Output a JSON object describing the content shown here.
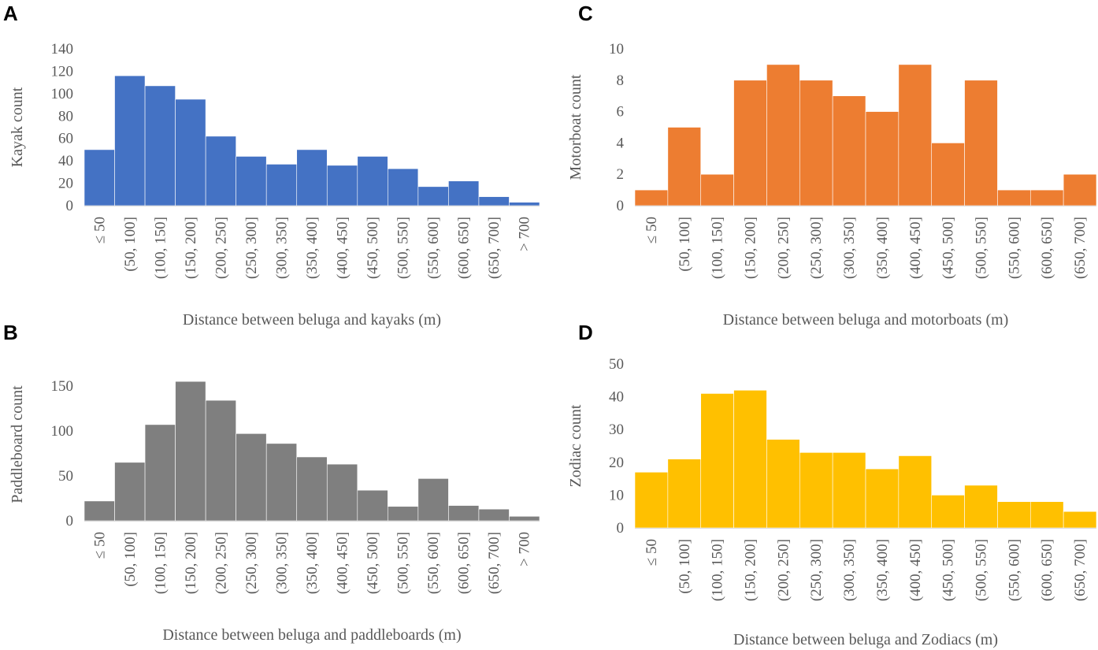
{
  "chart_data": [
    {
      "type": "bar",
      "panel_label": "A",
      "categories": [
        "≤ 50",
        "(50, 100]",
        "(100, 150]",
        "(150, 200]",
        "(200, 250]",
        "(250, 300]",
        "(300, 350]",
        "(350, 400]",
        "(400, 450]",
        "(450, 500]",
        "(500, 550]",
        "(550, 600]",
        "(600, 650]",
        "(650, 700]",
        "> 700"
      ],
      "values": [
        50,
        116,
        107,
        95,
        62,
        44,
        37,
        50,
        36,
        44,
        33,
        17,
        22,
        8,
        3
      ],
      "xlabel": "Distance between beluga and kayaks (m)",
      "ylabel": "Kayak count",
      "ylim": [
        0,
        140
      ],
      "yticks": [
        0,
        20,
        40,
        60,
        80,
        100,
        120,
        140
      ],
      "color": "#4472c4"
    },
    {
      "type": "bar",
      "panel_label": "B",
      "categories": [
        "≤ 50",
        "(50, 100]",
        "(100, 150]",
        "(150, 200]",
        "(200, 250]",
        "(250, 300]",
        "(300, 350]",
        "(350, 400]",
        "(400, 450]",
        "(450, 500]",
        "(500, 550]",
        "(550, 600]",
        "(600, 650]",
        "(650, 700]",
        "> 700"
      ],
      "values": [
        22,
        65,
        107,
        155,
        134,
        97,
        86,
        71,
        63,
        34,
        16,
        47,
        17,
        13,
        5
      ],
      "xlabel": "Distance between beluga and paddleboards (m)",
      "ylabel": "Paddleboard count",
      "ylim": [
        0,
        170
      ],
      "yticks": [
        0,
        50,
        100,
        150
      ],
      "color": "#7f7f7f"
    },
    {
      "type": "bar",
      "panel_label": "C",
      "categories": [
        "≤ 50",
        "(50, 100]",
        "(100, 150]",
        "(150, 200]",
        "(200, 250]",
        "(250, 300]",
        "(300, 350]",
        "(350, 400]",
        "(400, 450]",
        "(450, 500]",
        "(500, 550]",
        "(550, 600]",
        "(600, 650]",
        "(650, 700]"
      ],
      "values": [
        1,
        5,
        2,
        8,
        9,
        8,
        7,
        6,
        9,
        4,
        8,
        1,
        1,
        2
      ],
      "xlabel": "Distance between beluga and motorboats (m)",
      "ylabel": "Motorboat count",
      "ylim": [
        0,
        10
      ],
      "yticks": [
        0,
        2,
        4,
        6,
        8,
        10
      ],
      "color": "#ed7d31"
    },
    {
      "type": "bar",
      "panel_label": "D",
      "categories": [
        "≤ 50",
        "(50, 100]",
        "(100, 150]",
        "(150, 200]",
        "(200, 250]",
        "(250, 300]",
        "(300, 350]",
        "(350, 400]",
        "(400, 450]",
        "(450, 500]",
        "(500, 550]",
        "(550, 600]",
        "(600, 650]",
        "(650, 700]"
      ],
      "values": [
        17,
        21,
        41,
        42,
        27,
        23,
        23,
        18,
        22,
        10,
        13,
        8,
        8,
        5
      ],
      "xlabel": "Distance between beluga and Zodiacs (m)",
      "ylabel": "Zodiac count",
      "ylim": [
        0,
        50
      ],
      "yticks": [
        0,
        10,
        20,
        30,
        40,
        50
      ],
      "color": "#ffc000"
    }
  ]
}
